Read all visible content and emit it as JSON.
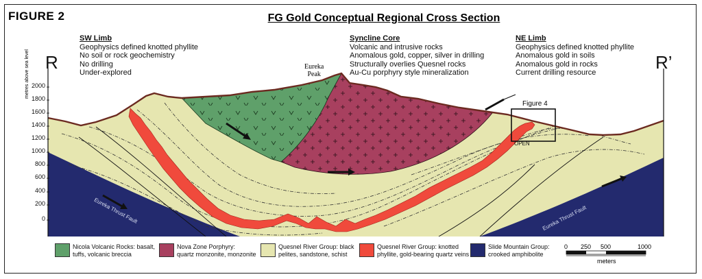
{
  "figure_label": "FIGURE 2",
  "title": "FG Gold Conceptual Regional Cross Section",
  "section_ends": {
    "left": "R",
    "right": "R’"
  },
  "limbs": [
    {
      "heading": "SW Limb",
      "lines": [
        "Geophysics defined knotted phyllite",
        "No soil or rock geochemistry",
        "No drilling",
        "Under-explored"
      ]
    },
    {
      "heading": "Syncline Core",
      "lines": [
        "Volcanic and intrusive rocks",
        "Anomalous gold, copper, silver in drilling",
        "Structurally overlies Quesnel rocks",
        "Au-Cu porphyry style mineralization"
      ]
    },
    {
      "heading": "NE Limb",
      "lines": [
        "Geophysics defined knotted phyllite",
        "Anomalous gold in soils",
        "Anomalous gold in rocks",
        "Current drilling resource"
      ]
    }
  ],
  "peak_label": [
    "Eureka",
    "Peak"
  ],
  "figure4_label": "Figure 4",
  "open_label": "OPEN",
  "y_axis": {
    "label": "metres above sea level",
    "ticks": [
      "2000",
      "1800",
      "1600",
      "1400",
      "1200",
      "1000",
      "800",
      "600",
      "400",
      "200",
      "0"
    ]
  },
  "faults": [
    "Eureka Thrust Fault",
    "Eureka Thrust Fault"
  ],
  "legend": [
    {
      "line1": "Nicola Volcanic Rocks: basalt,",
      "line2": "tuffs, volcanic breccia",
      "color": "#5fa06a"
    },
    {
      "line1": "Nova Zone Porphyry:",
      "line2": "quartz monzonite, monzonite",
      "color": "#a8405f"
    },
    {
      "line1": "Quesnel River Group: black",
      "line2": "pelites, sandstone, schist",
      "color": "#e6e6b0"
    },
    {
      "line1": "Quesnel River Group: knotted",
      "line2": "phyllite, gold-bearing quartz veins",
      "color": "#f04a3c"
    },
    {
      "line1": "Slide Mountain Group:",
      "line2": "crooked amphibolite",
      "color": "#232a6e"
    }
  ],
  "scale_bar": {
    "ticks": [
      "0",
      "250",
      "500",
      "1000"
    ],
    "unit": "meters"
  },
  "colors": {
    "topo": "#6b2a20",
    "green": "#5fa06a",
    "magenta": "#a8405f",
    "cream": "#e6e6b0",
    "red": "#f04a3c",
    "navy": "#232a6e"
  }
}
